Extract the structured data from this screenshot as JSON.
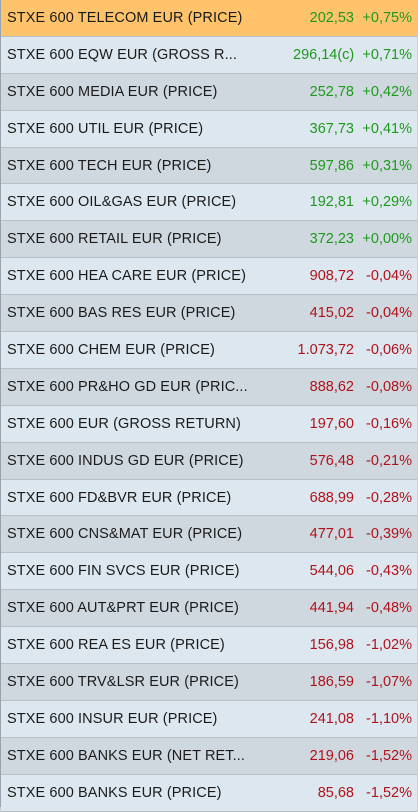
{
  "colors": {
    "positive": "#1d9a1d",
    "negative": "#b0121b",
    "selected_row": "#ffc46b"
  },
  "rows": [
    {
      "name": "STXE 600 TELECOM EUR (PRICE)",
      "value": "202,53",
      "change": "+0,75%",
      "dir": "pos",
      "selected": true
    },
    {
      "name": "STXE 600 EQW EUR (GROSS R...",
      "value": "296,14(c)",
      "change": "+0,71%",
      "dir": "pos"
    },
    {
      "name": "STXE 600 MEDIA EUR (PRICE)",
      "value": "252,78",
      "change": "+0,42%",
      "dir": "pos"
    },
    {
      "name": "STXE 600 UTIL EUR (PRICE)",
      "value": "367,73",
      "change": "+0,41%",
      "dir": "pos"
    },
    {
      "name": "STXE 600 TECH EUR (PRICE)",
      "value": "597,86",
      "change": "+0,31%",
      "dir": "pos"
    },
    {
      "name": "STXE 600 OIL&GAS EUR (PRICE)",
      "value": "192,81",
      "change": "+0,29%",
      "dir": "pos"
    },
    {
      "name": "STXE 600 RETAIL EUR (PRICE)",
      "value": "372,23",
      "change": "+0,00%",
      "dir": "pos"
    },
    {
      "name": "STXE 600 HEA CARE EUR (PRICE)",
      "value": "908,72",
      "change": "-0,04%",
      "dir": "neg"
    },
    {
      "name": "STXE 600 BAS RES EUR (PRICE)",
      "value": "415,02",
      "change": "-0,04%",
      "dir": "neg"
    },
    {
      "name": "STXE 600 CHEM EUR (PRICE)",
      "value": "1.073,72",
      "change": "-0,06%",
      "dir": "neg"
    },
    {
      "name": "STXE 600 PR&HO GD EUR (PRIC...",
      "value": "888,62",
      "change": "-0,08%",
      "dir": "neg"
    },
    {
      "name": "STXE 600 EUR (GROSS RETURN)",
      "value": "197,60",
      "change": "-0,16%",
      "dir": "neg"
    },
    {
      "name": "STXE 600 INDUS GD EUR (PRICE)",
      "value": "576,48",
      "change": "-0,21%",
      "dir": "neg"
    },
    {
      "name": "STXE 600 FD&BVR EUR (PRICE)",
      "value": "688,99",
      "change": "-0,28%",
      "dir": "neg"
    },
    {
      "name": "STXE 600 CNS&MAT EUR (PRICE)",
      "value": "477,01",
      "change": "-0,39%",
      "dir": "neg"
    },
    {
      "name": "STXE 600 FIN SVCS EUR (PRICE)",
      "value": "544,06",
      "change": "-0,43%",
      "dir": "neg"
    },
    {
      "name": "STXE 600 AUT&PRT EUR (PRICE)",
      "value": "441,94",
      "change": "-0,48%",
      "dir": "neg"
    },
    {
      "name": "STXE 600 REA ES EUR (PRICE)",
      "value": "156,98",
      "change": "-1,02%",
      "dir": "neg"
    },
    {
      "name": "STXE 600 TRV&LSR EUR (PRICE)",
      "value": "186,59",
      "change": "-1,07%",
      "dir": "neg"
    },
    {
      "name": "STXE 600 INSUR EUR (PRICE)",
      "value": "241,08",
      "change": "-1,10%",
      "dir": "neg"
    },
    {
      "name": "STXE 600 BANKS EUR (NET RET...",
      "value": "219,06",
      "change": "-1,52%",
      "dir": "neg"
    },
    {
      "name": "STXE 600 BANKS EUR (PRICE)",
      "value": "85,68",
      "change": "-1,52%",
      "dir": "neg"
    }
  ]
}
